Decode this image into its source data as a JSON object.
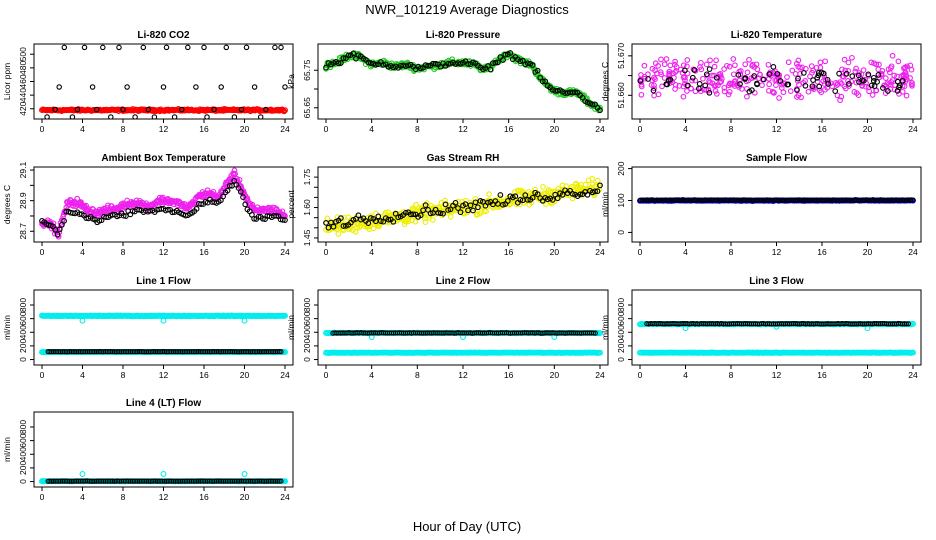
{
  "figure": {
    "title": "NWR_101219  Average Diagnostics",
    "xlabel": "Hour of Day (UTC)"
  },
  "chart_data": [
    {
      "type": "scatter",
      "title": "Li-820 CO2",
      "ylabel": "Licor ppm",
      "xlim": [
        0,
        24
      ],
      "xticks": [
        0,
        4,
        8,
        12,
        16,
        20,
        24
      ],
      "ylim": [
        405,
        515
      ],
      "yticks": [
        420,
        440,
        460,
        480,
        500
      ],
      "series": [
        {
          "name": "raw",
          "color": "#ff0000",
          "kind": "band",
          "x_range": [
            0,
            24
          ],
          "value": 418,
          "spread": 2
        },
        {
          "name": "averages",
          "color": "#000000",
          "kind": "points",
          "x": [
            0.5,
            1.3,
            1.7,
            2.2,
            3.0,
            3.5,
            4.2,
            5.0,
            5.4,
            6.0,
            6.8,
            7.6,
            8.0,
            8.4,
            9.2,
            10.0,
            10.5,
            11.1,
            12.0,
            12.3,
            13.1,
            13.8,
            14.4,
            15.2,
            16.0,
            16.3,
            17.0,
            17.7,
            18.2,
            19.0,
            19.7,
            20.2,
            21.0,
            21.6,
            22.1,
            23.0,
            23.6,
            24.0
          ],
          "y": [
            408,
            419,
            452,
            510,
            408,
            419,
            510,
            452,
            419,
            510,
            408,
            510,
            419,
            452,
            408,
            510,
            419,
            408,
            452,
            510,
            408,
            419,
            510,
            452,
            510,
            408,
            419,
            452,
            510,
            408,
            419,
            510,
            452,
            408,
            419,
            510,
            510,
            452
          ]
        }
      ]
    },
    {
      "type": "scatter",
      "title": "Li-820 Pressure",
      "ylabel": "kPa",
      "xlim": [
        0,
        24
      ],
      "xticks": [
        0,
        4,
        8,
        12,
        16,
        20,
        24
      ],
      "ylim": [
        65.62,
        65.82
      ],
      "yticks": [
        65.65,
        65.7,
        65.75
      ],
      "yticklabels": [
        "65.65",
        "",
        "65.75"
      ],
      "series": [
        {
          "name": "raw",
          "color": "#22cc22",
          "kind": "curve",
          "x": [
            0,
            1,
            2,
            3,
            4,
            5,
            6,
            7,
            8,
            9,
            10,
            11,
            12,
            13,
            14,
            15,
            16,
            17,
            18,
            19,
            20,
            21,
            22,
            23,
            24
          ],
          "y": [
            65.765,
            65.77,
            65.79,
            65.785,
            65.765,
            65.77,
            65.76,
            65.765,
            65.755,
            65.76,
            65.765,
            65.77,
            65.77,
            65.765,
            65.75,
            65.775,
            65.795,
            65.775,
            65.765,
            65.72,
            65.695,
            65.69,
            65.69,
            65.665,
            65.645
          ],
          "spread": 0.012
        },
        {
          "name": "averages",
          "color": "#000000",
          "kind": "curve",
          "x": [
            0,
            1,
            2,
            3,
            4,
            5,
            6,
            7,
            8,
            9,
            10,
            11,
            12,
            13,
            14,
            15,
            16,
            17,
            18,
            19,
            20,
            21,
            22,
            23,
            24
          ],
          "y": [
            65.765,
            65.77,
            65.79,
            65.785,
            65.765,
            65.77,
            65.76,
            65.765,
            65.755,
            65.76,
            65.765,
            65.77,
            65.77,
            65.765,
            65.75,
            65.775,
            65.795,
            65.775,
            65.765,
            65.72,
            65.695,
            65.69,
            65.69,
            65.665,
            65.645
          ],
          "spread": 0.01
        }
      ]
    },
    {
      "type": "scatter",
      "title": "Li-820 Temperature",
      "ylabel": "degrees C",
      "xlim": [
        0,
        24
      ],
      "xticks": [
        0,
        4,
        8,
        12,
        16,
        20,
        24
      ],
      "ylim": [
        51.654,
        51.673
      ],
      "yticks": [
        51.66,
        51.665,
        51.67
      ],
      "yticklabels": [
        "51.660",
        "",
        "51.670"
      ],
      "series": [
        {
          "name": "raw",
          "color": "#ee22ee",
          "kind": "cloud",
          "x_range": [
            0,
            24
          ],
          "center": 51.664,
          "spread": 0.0045
        },
        {
          "name": "averages",
          "color": "#000000",
          "kind": "cloud",
          "x_range": [
            0,
            24
          ],
          "center": 51.664,
          "spread": 0.003,
          "count": 70
        }
      ]
    },
    {
      "type": "scatter",
      "title": "Ambient Box Temperature",
      "ylabel": "degrees C",
      "xlim": [
        0,
        24
      ],
      "xticks": [
        0,
        4,
        8,
        12,
        16,
        20,
        24
      ],
      "ylim": [
        28.63,
        29.12
      ],
      "yticks": [
        28.7,
        28.8,
        28.9,
        29.0,
        29.1
      ],
      "yticklabels": [
        "28.7",
        "",
        "28.9",
        "",
        "29.1"
      ],
      "series": [
        {
          "name": "raw",
          "color": "#ee22ee",
          "kind": "curve",
          "x": [
            0,
            1,
            1.6,
            2.5,
            3.5,
            4.5,
            5.5,
            6.5,
            7.5,
            8.5,
            9.5,
            10.5,
            11.5,
            12.5,
            13.5,
            14.5,
            15.5,
            16.5,
            17.5,
            18.3,
            19,
            19.6,
            20.3,
            21,
            22,
            23,
            24
          ],
          "y": [
            28.76,
            28.74,
            28.68,
            28.88,
            28.89,
            28.84,
            28.82,
            28.84,
            28.85,
            28.88,
            28.89,
            28.86,
            28.9,
            28.9,
            28.88,
            28.85,
            28.93,
            28.95,
            28.92,
            29.02,
            29.07,
            29.0,
            28.9,
            28.83,
            28.84,
            28.84,
            28.8
          ],
          "spread": 0.035
        },
        {
          "name": "averages",
          "color": "#000000",
          "kind": "curve",
          "x": [
            0,
            1,
            1.6,
            2.5,
            3.5,
            4.5,
            5.5,
            6.5,
            7.5,
            8.5,
            9.5,
            10.5,
            11.5,
            12.5,
            13.5,
            14.5,
            15.5,
            16.5,
            17.5,
            18.3,
            19,
            19.6,
            20.3,
            21,
            22,
            23,
            24
          ],
          "y": [
            28.76,
            28.74,
            28.68,
            28.83,
            28.82,
            28.79,
            28.77,
            28.8,
            28.8,
            28.82,
            28.84,
            28.82,
            28.85,
            28.84,
            28.82,
            28.8,
            28.87,
            28.9,
            28.88,
            28.97,
            29.02,
            28.96,
            28.85,
            28.79,
            28.79,
            28.8,
            28.78
          ],
          "spread": 0.02
        }
      ]
    },
    {
      "type": "scatter",
      "title": "Gas Stream RH",
      "ylabel": "percent",
      "xlim": [
        0,
        24
      ],
      "xticks": [
        0,
        4,
        8,
        12,
        16,
        20,
        24
      ],
      "ylim": [
        1.43,
        1.8
      ],
      "yticks": [
        1.45,
        1.5,
        1.55,
        1.6,
        1.65,
        1.7,
        1.75
      ],
      "yticklabels": [
        "1.45",
        "",
        "",
        "1.60",
        "",
        "",
        "1.75"
      ],
      "series": [
        {
          "name": "raw",
          "color": "#eeee00",
          "kind": "curve",
          "x": [
            0,
            24
          ],
          "y": [
            1.5,
            1.7
          ],
          "spread": 0.06
        },
        {
          "name": "averages",
          "color": "#000000",
          "kind": "curve",
          "x": [
            0,
            24
          ],
          "y": [
            1.52,
            1.69
          ],
          "spread": 0.04
        }
      ]
    },
    {
      "type": "scatter",
      "title": "Sample Flow",
      "ylabel": "ml/min",
      "xlim": [
        0,
        24
      ],
      "xticks": [
        0,
        4,
        8,
        12,
        16,
        20,
        24
      ],
      "ylim": [
        -30,
        205
      ],
      "yticks": [
        0,
        100,
        200
      ],
      "series": [
        {
          "name": "raw",
          "color": "#0000cc",
          "kind": "band",
          "x_range": [
            0,
            24
          ],
          "value": 100,
          "spread": 2
        },
        {
          "name": "averages",
          "color": "#000000",
          "kind": "band",
          "x_range": [
            0,
            24
          ],
          "value": 101,
          "spread": 1
        }
      ]
    },
    {
      "type": "scatter",
      "title": "Line 1 Flow",
      "ylabel": "ml/min",
      "xlim": [
        0,
        24
      ],
      "xticks": [
        0,
        4,
        8,
        12,
        16,
        20,
        24
      ],
      "ylim": [
        -80,
        1020
      ],
      "yticks": [
        0,
        200,
        400,
        600,
        800
      ],
      "series": [
        {
          "name": "raw",
          "color": "#00eeee",
          "kind": "band",
          "x_range": [
            0,
            24
          ],
          "value": 640,
          "spread": 8,
          "dips": [
            [
              4,
              570
            ],
            [
              12,
              570
            ],
            [
              20,
              570
            ]
          ]
        },
        {
          "name": "raw_low",
          "color": "#00eeee",
          "kind": "band",
          "x_range": [
            0,
            24
          ],
          "value": 110,
          "spread": 4
        },
        {
          "name": "averages",
          "color": "#000000",
          "kind": "band",
          "x_range": [
            0.6,
            23.6
          ],
          "value": 115,
          "spread": 2
        }
      ]
    },
    {
      "type": "scatter",
      "title": "Line 2 Flow",
      "ylabel": "ml/min",
      "xlim": [
        0,
        24
      ],
      "xticks": [
        0,
        4,
        8,
        12,
        16,
        20,
        24
      ],
      "ylim": [
        -80,
        1020
      ],
      "yticks": [
        0,
        200,
        400,
        600,
        800
      ],
      "series": [
        {
          "name": "raw",
          "color": "#00eeee",
          "kind": "band",
          "x_range": [
            0,
            24
          ],
          "value": 100,
          "spread": 4
        },
        {
          "name": "raw_high",
          "color": "#00eeee",
          "kind": "band",
          "x_range": [
            0,
            24
          ],
          "value": 390,
          "spread": 6,
          "dips": [
            [
              4,
              330
            ],
            [
              12,
              330
            ],
            [
              20,
              330
            ]
          ]
        },
        {
          "name": "averages",
          "color": "#000000",
          "kind": "band",
          "x_range": [
            0.6,
            23.6
          ],
          "value": 390,
          "spread": 6
        }
      ]
    },
    {
      "type": "scatter",
      "title": "Line 3 Flow",
      "ylabel": "ml/min",
      "xlim": [
        0,
        24
      ],
      "xticks": [
        0,
        4,
        8,
        12,
        16,
        20,
        24
      ],
      "ylim": [
        -80,
        1020
      ],
      "yticks": [
        0,
        200,
        400,
        600,
        800
      ],
      "series": [
        {
          "name": "raw",
          "color": "#00eeee",
          "kind": "band",
          "x_range": [
            0,
            24
          ],
          "value": 100,
          "spread": 4
        },
        {
          "name": "raw_high",
          "color": "#00eeee",
          "kind": "band",
          "x_range": [
            0,
            24
          ],
          "value": 520,
          "spread": 6,
          "dips": [
            [
              4,
              460
            ],
            [
              12,
              480
            ],
            [
              20,
              460
            ]
          ]
        },
        {
          "name": "averages",
          "color": "#000000",
          "kind": "band",
          "x_range": [
            0.6,
            23.6
          ],
          "value": 525,
          "spread": 6
        }
      ]
    },
    {
      "type": "scatter",
      "title": "Line 4 (LT) Flow",
      "ylabel": "ml/min",
      "xlim": [
        0,
        24
      ],
      "xticks": [
        0,
        4,
        8,
        12,
        16,
        20,
        24
      ],
      "ylim": [
        -80,
        1020
      ],
      "yticks": [
        0,
        200,
        400,
        600,
        800
      ],
      "series": [
        {
          "name": "raw",
          "color": "#00eeee",
          "kind": "band",
          "x_range": [
            0,
            24
          ],
          "value": 5,
          "spread": 3,
          "spikes": [
            [
              4,
              110
            ],
            [
              12,
              110
            ],
            [
              20,
              110
            ]
          ]
        },
        {
          "name": "averages",
          "color": "#000000",
          "kind": "band",
          "x_range": [
            0.6,
            23.6
          ],
          "value": 5,
          "spread": 2
        }
      ]
    }
  ]
}
